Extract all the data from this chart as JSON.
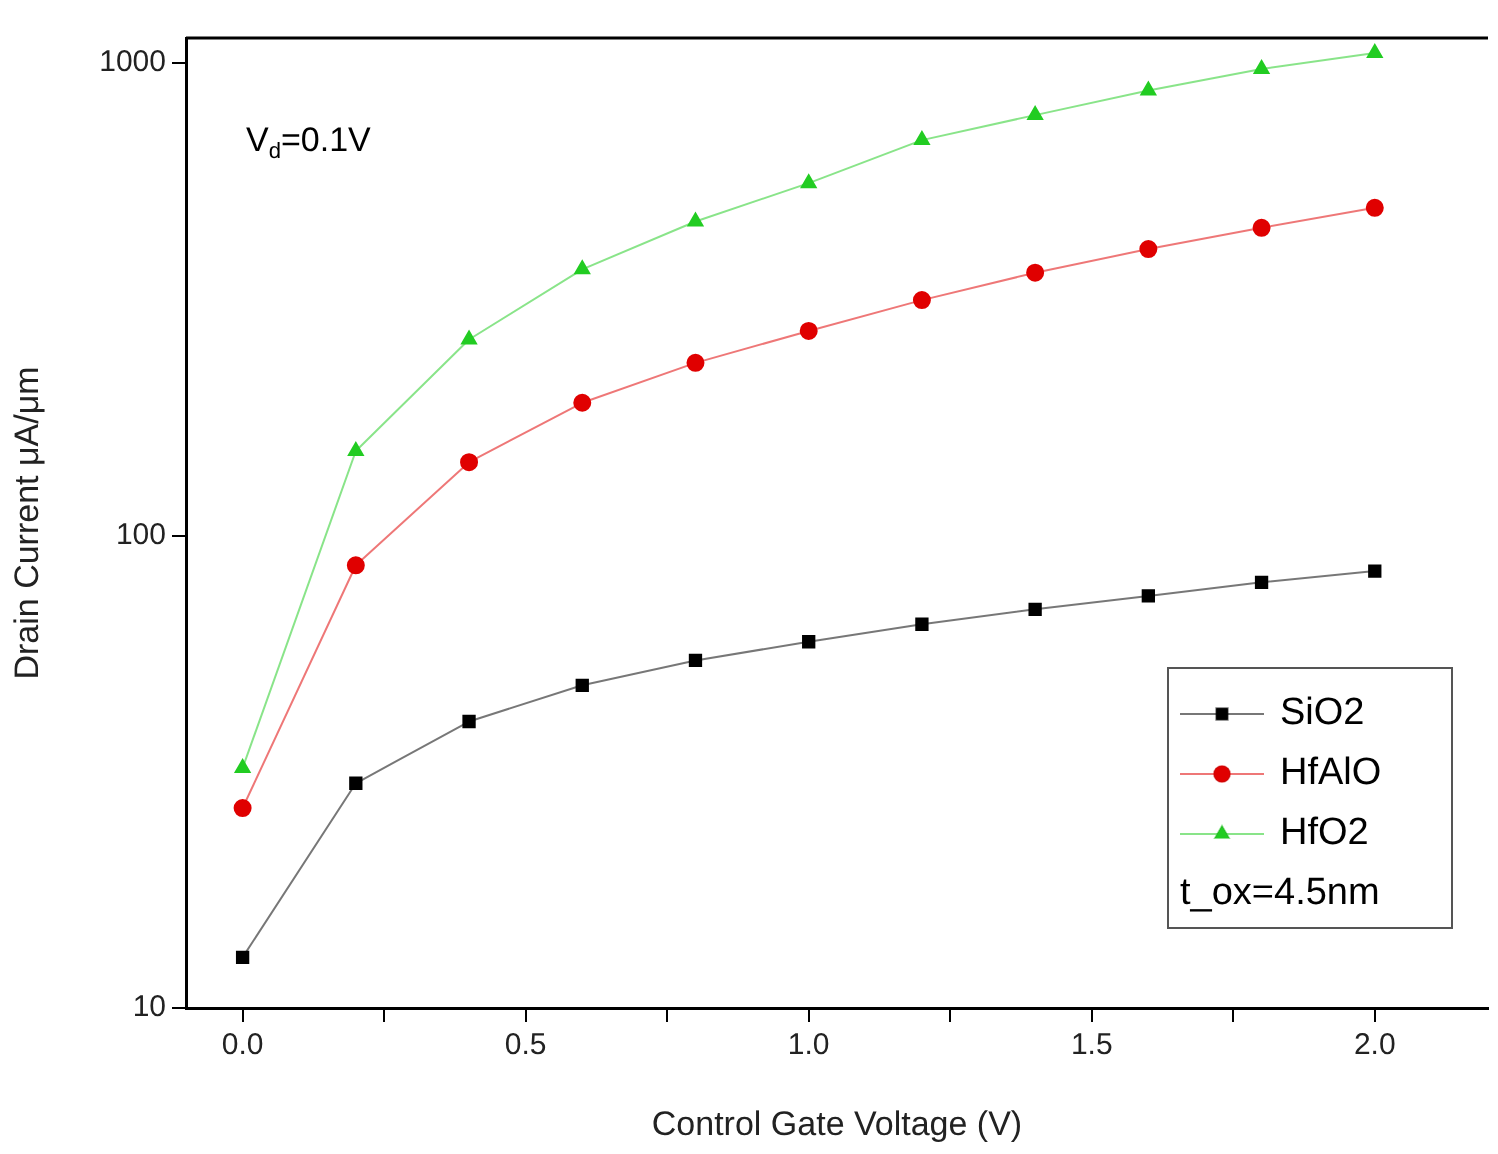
{
  "chart_data": {
    "type": "line",
    "xlabel": "Control Gate Voltage (V)",
    "ylabel": "Drain Current μA/μm",
    "x": [
      0,
      0.2,
      0.4,
      0.6,
      0.8,
      1.0,
      1.2,
      1.4,
      1.6,
      1.8,
      2.0
    ],
    "series": [
      {
        "name": "SiO2",
        "color": "#000000",
        "marker": "square",
        "values": [
          12.8,
          29.9,
          40.4,
          48.2,
          54.4,
          59.6,
          64.9,
          69.8,
          74.5,
          79.6,
          84.1
        ]
      },
      {
        "name": "HfAlO",
        "color": "#e00000",
        "marker": "circle",
        "values": [
          26.5,
          86.5,
          143,
          191,
          232,
          271,
          315,
          360,
          404,
          448,
          494
        ]
      },
      {
        "name": "HfO2",
        "color": "#22cc22",
        "marker": "triangle",
        "values": [
          32.2,
          151,
          260,
          366,
          462,
          557,
          687,
          776,
          875,
          972,
          1050
        ]
      }
    ],
    "log": "y",
    "xlim": [
      -0.1,
      2.2
    ],
    "ylim": [
      10,
      1130
    ],
    "xticks": [
      {
        "value": 0,
        "label": "0.0"
      },
      {
        "value": 0.25,
        "label": null
      },
      {
        "value": 0.5,
        "label": "0.5"
      },
      {
        "value": 0.75,
        "label": null
      },
      {
        "value": 1,
        "label": "1.0"
      },
      {
        "value": 1.25,
        "label": null
      },
      {
        "value": 1.5,
        "label": "1.5"
      },
      {
        "value": 1.75,
        "label": null
      },
      {
        "value": 2,
        "label": "2.0"
      }
    ],
    "yticks": [
      10,
      100,
      1000
    ],
    "grid": false,
    "legend": "bottom right",
    "line_style": "solid",
    "annotations": [
      {
        "text": "V$_{d}$=0.1V"
      },
      {
        "text": "t_ox=4.5nm"
      }
    ]
  }
}
